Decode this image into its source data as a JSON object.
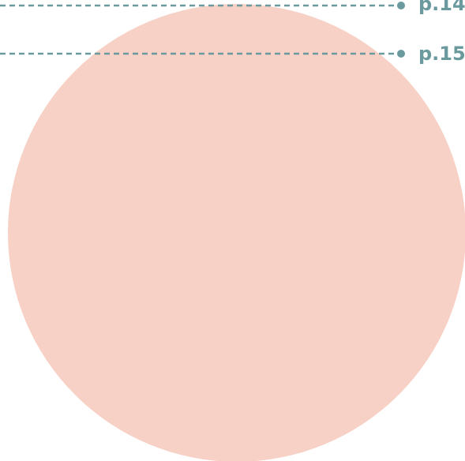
{
  "labels": [
    "p.14",
    "p.15"
  ]
}
